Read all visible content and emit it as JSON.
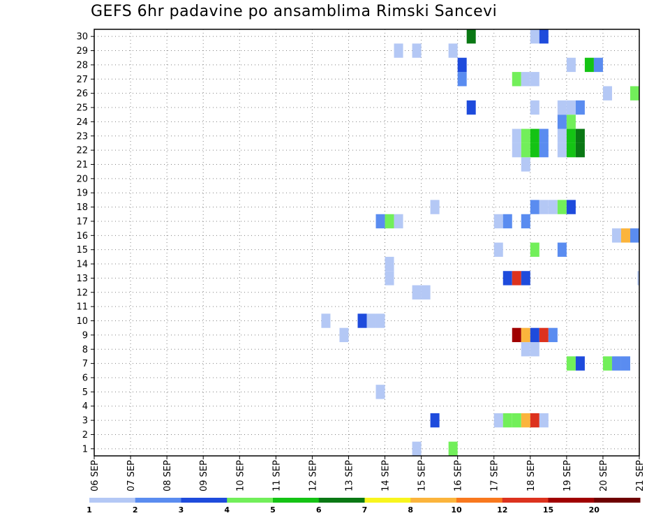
{
  "title": "GEFS 6hr padavine po ansamblima Rimski Sancevi",
  "chart_data": {
    "type": "heatmap",
    "title": "GEFS 6hr padavine po ansamblima Rimski Sancevi",
    "x_tick_labels": [
      "06 SEP",
      "07 SEP",
      "08 SEP",
      "09 SEP",
      "10 SEP",
      "11 SEP",
      "12 SEP",
      "13 SEP",
      "14 SEP",
      "15 SEP",
      "16 SEP",
      "17 SEP",
      "18 SEP",
      "19 SEP",
      "20 SEP",
      "21 SEP"
    ],
    "y_tick_labels": [
      "1",
      "2",
      "3",
      "4",
      "5",
      "6",
      "7",
      "8",
      "9",
      "10",
      "11",
      "12",
      "13",
      "14",
      "15",
      "16",
      "17",
      "18",
      "19",
      "20",
      "21",
      "22",
      "23",
      "24",
      "25",
      "26",
      "27",
      "28",
      "29",
      "30"
    ],
    "xlim_days": [
      0,
      15
    ],
    "ylim": [
      0.5,
      30.5
    ],
    "grid": true,
    "colorbar": {
      "labels": [
        "1",
        "2",
        "3",
        "4",
        "5",
        "6",
        "7",
        "8",
        "10",
        "12",
        "15",
        "20"
      ],
      "colors": [
        "#b4c8f5",
        "#5a8cf0",
        "#1e4bdc",
        "#72ef5a",
        "#14c314",
        "#0a7814",
        "#f8f51e",
        "#fbb43c",
        "#f8781e",
        "#dc321e",
        "#a00000",
        "#6e0000"
      ]
    },
    "note_cells": "each cell: [member, day_offset_from_06_SEP, colorbar_class_index]",
    "cells": [
      [
        1,
        8.75,
        0
      ],
      [
        1,
        9.75,
        3
      ],
      [
        3,
        9.25,
        2
      ],
      [
        3,
        11.0,
        0
      ],
      [
        3,
        11.25,
        3
      ],
      [
        3,
        11.5,
        3
      ],
      [
        3,
        11.75,
        7
      ],
      [
        3,
        12.0,
        9
      ],
      [
        3,
        12.25,
        0
      ],
      [
        5,
        7.75,
        0
      ],
      [
        7,
        13.0,
        3
      ],
      [
        7,
        13.25,
        2
      ],
      [
        7,
        14.0,
        3
      ],
      [
        7,
        14.25,
        1
      ],
      [
        7,
        14.5,
        1
      ],
      [
        8,
        11.75,
        0
      ],
      [
        8,
        12.0,
        0
      ],
      [
        9,
        6.75,
        0
      ],
      [
        9,
        11.5,
        10
      ],
      [
        9,
        11.75,
        7
      ],
      [
        9,
        12.0,
        2
      ],
      [
        9,
        12.25,
        9
      ],
      [
        9,
        12.5,
        1
      ],
      [
        10,
        6.25,
        0
      ],
      [
        10,
        7.25,
        2
      ],
      [
        10,
        7.5,
        0
      ],
      [
        10,
        7.75,
        0
      ],
      [
        12,
        8.75,
        0
      ],
      [
        12,
        9.0,
        0
      ],
      [
        13,
        8.0,
        0
      ],
      [
        13,
        11.25,
        2
      ],
      [
        13,
        11.5,
        9
      ],
      [
        13,
        11.75,
        2
      ],
      [
        13,
        14.95,
        0
      ],
      [
        14,
        8.0,
        0
      ],
      [
        15,
        11.0,
        0
      ],
      [
        15,
        12.0,
        3
      ],
      [
        15,
        12.75,
        1
      ],
      [
        16,
        14.25,
        0
      ],
      [
        16,
        14.5,
        7
      ],
      [
        16,
        14.75,
        1
      ],
      [
        17,
        7.75,
        1
      ],
      [
        17,
        8.0,
        3
      ],
      [
        17,
        8.25,
        0
      ],
      [
        17,
        11.0,
        0
      ],
      [
        17,
        11.25,
        1
      ],
      [
        17,
        11.75,
        1
      ],
      [
        18,
        9.25,
        0
      ],
      [
        18,
        12.0,
        1
      ],
      [
        18,
        12.25,
        0
      ],
      [
        18,
        12.5,
        0
      ],
      [
        18,
        12.75,
        3
      ],
      [
        18,
        13.0,
        2
      ],
      [
        21,
        11.75,
        0
      ],
      [
        22,
        11.5,
        0
      ],
      [
        22,
        11.75,
        3
      ],
      [
        22,
        12.0,
        4
      ],
      [
        22,
        12.25,
        1
      ],
      [
        22,
        12.75,
        0
      ],
      [
        22,
        13.0,
        4
      ],
      [
        22,
        13.25,
        5
      ],
      [
        23,
        11.5,
        0
      ],
      [
        23,
        11.75,
        3
      ],
      [
        23,
        12.0,
        4
      ],
      [
        23,
        12.25,
        1
      ],
      [
        23,
        12.75,
        0
      ],
      [
        23,
        13.0,
        4
      ],
      [
        23,
        13.25,
        5
      ],
      [
        24,
        12.75,
        1
      ],
      [
        24,
        13.0,
        3
      ],
      [
        25,
        10.25,
        2
      ],
      [
        25,
        12.0,
        0
      ],
      [
        25,
        12.75,
        0
      ],
      [
        25,
        13.0,
        0
      ],
      [
        25,
        13.25,
        1
      ],
      [
        26,
        14.0,
        0
      ],
      [
        26,
        14.75,
        3
      ],
      [
        27,
        10.0,
        1
      ],
      [
        27,
        11.5,
        3
      ],
      [
        27,
        11.75,
        0
      ],
      [
        27,
        12.0,
        0
      ],
      [
        28,
        10.0,
        2
      ],
      [
        28,
        13.0,
        0
      ],
      [
        28,
        13.5,
        4
      ],
      [
        28,
        13.75,
        1
      ],
      [
        29,
        8.25,
        0
      ],
      [
        29,
        8.75,
        0
      ],
      [
        29,
        9.75,
        0
      ],
      [
        30,
        10.25,
        5
      ],
      [
        30,
        12.0,
        0
      ],
      [
        30,
        12.25,
        2
      ]
    ]
  }
}
